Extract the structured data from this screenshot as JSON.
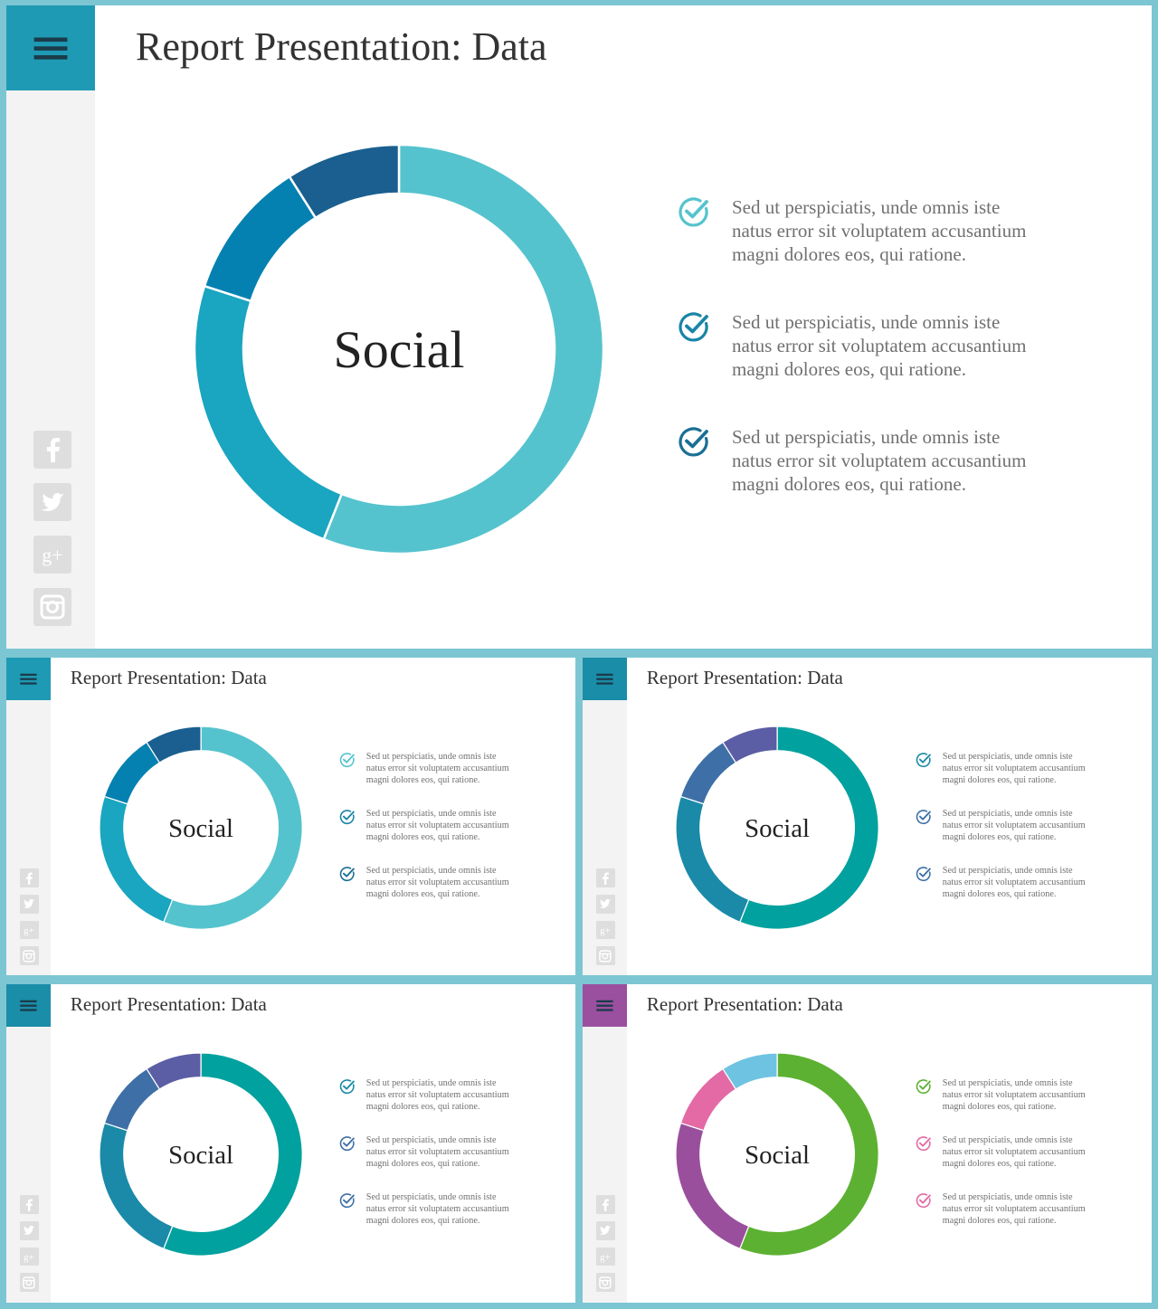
{
  "slides": [
    {
      "id": "main",
      "title": "Report Presentation: Data",
      "center_label": "Social",
      "menu_color": "#1f9ab4",
      "menu_icon": "hamburger-menu-icon",
      "chart_data": {
        "type": "pie",
        "donut": true,
        "center_text": "Social",
        "values": [
          56,
          24,
          11,
          9
        ],
        "colors": [
          "#55c3cd",
          "#1aa5c0",
          "#0481b0",
          "#1a5f8f"
        ]
      },
      "bullets": [
        {
          "icon": "check-circle-icon",
          "color": "#55c3cd",
          "lines": [
            "Sed ut perspiciatis, unde omnis iste",
            "natus error sit voluptatem accusantium",
            "magni dolores eos, qui ratione."
          ]
        },
        {
          "icon": "check-circle-icon",
          "color": "#1a85a6",
          "lines": [
            "Sed ut perspiciatis, unde omnis iste",
            "natus error sit voluptatem accusantium",
            "magni dolores eos, qui ratione."
          ]
        },
        {
          "icon": "check-circle-icon",
          "color": "#1a6f93",
          "lines": [
            "Sed ut perspiciatis, unde omnis iste",
            "natus error sit voluptatem accusantium",
            "magni dolores eos, qui ratione."
          ]
        }
      ],
      "social_icons": [
        "facebook-icon",
        "twitter-icon",
        "google-plus-icon",
        "instagram-icon"
      ]
    },
    {
      "id": "variant-1",
      "title": "Report Presentation: Data",
      "center_label": "Social",
      "menu_color": "#1f9ab4",
      "menu_icon": "hamburger-menu-icon",
      "chart_data": {
        "type": "pie",
        "donut": true,
        "center_text": "Social",
        "values": [
          56,
          24,
          11,
          9
        ],
        "colors": [
          "#55c3cd",
          "#1aa5c0",
          "#0481b0",
          "#1a5f8f"
        ]
      },
      "bullets": [
        {
          "icon": "check-circle-icon",
          "color": "#55c3cd",
          "lines": [
            "Sed ut perspiciatis, unde omnis iste",
            "natus error sit voluptatem accusantium",
            "magni dolores eos, qui ratione."
          ]
        },
        {
          "icon": "check-circle-icon",
          "color": "#1a85a6",
          "lines": [
            "Sed ut perspiciatis, unde omnis iste",
            "natus error sit voluptatem accusantium",
            "magni dolores eos, qui ratione."
          ]
        },
        {
          "icon": "check-circle-icon",
          "color": "#1a6f93",
          "lines": [
            "Sed ut perspiciatis, unde omnis iste",
            "natus error sit voluptatem accusantium",
            "magni dolores eos, qui ratione."
          ]
        }
      ],
      "social_icons": [
        "facebook-icon",
        "twitter-icon",
        "google-plus-icon",
        "instagram-icon"
      ]
    },
    {
      "id": "variant-2",
      "title": "Report Presentation: Data",
      "center_label": "Social",
      "menu_color": "#1a8da8",
      "menu_icon": "hamburger-menu-icon",
      "chart_data": {
        "type": "pie",
        "donut": true,
        "center_text": "Social",
        "values": [
          56,
          24,
          11,
          9
        ],
        "colors": [
          "#00a19e",
          "#1a8aa8",
          "#3e6fa6",
          "#5b5ea4"
        ]
      },
      "bullets": [
        {
          "icon": "check-circle-icon",
          "color": "#1a8aa8",
          "lines": [
            "Sed ut perspiciatis, unde omnis iste",
            "natus error sit voluptatem accusantium",
            "magni dolores eos, qui ratione."
          ]
        },
        {
          "icon": "check-circle-icon",
          "color": "#3e6fa6",
          "lines": [
            "Sed ut perspiciatis, unde omnis iste",
            "natus error sit voluptatem accusantium",
            "magni dolores eos, qui ratione."
          ]
        },
        {
          "icon": "check-circle-icon",
          "color": "#3e6fa6",
          "lines": [
            "Sed ut perspiciatis, unde omnis iste",
            "natus error sit voluptatem accusantium",
            "magni dolores eos, qui ratione."
          ]
        }
      ],
      "social_icons": [
        "facebook-icon",
        "twitter-icon",
        "google-plus-icon",
        "instagram-icon"
      ]
    },
    {
      "id": "variant-3",
      "title": "Report Presentation: Data",
      "center_label": "Social",
      "menu_color": "#1a8da8",
      "menu_icon": "hamburger-menu-icon",
      "chart_data": {
        "type": "pie",
        "donut": true,
        "center_text": "Social",
        "values": [
          56,
          24,
          11,
          9
        ],
        "colors": [
          "#00a19e",
          "#1a8aa8",
          "#3e6fa6",
          "#5b5ea4"
        ]
      },
      "bullets": [
        {
          "icon": "check-circle-icon",
          "color": "#1a8aa8",
          "lines": [
            "Sed ut perspiciatis, unde omnis iste",
            "natus error sit voluptatem accusantium",
            "magni dolores eos, qui ratione."
          ]
        },
        {
          "icon": "check-circle-icon",
          "color": "#3e6fa6",
          "lines": [
            "Sed ut perspiciatis, unde omnis iste",
            "natus error sit voluptatem accusantium",
            "magni dolores eos, qui ratione."
          ]
        },
        {
          "icon": "check-circle-icon",
          "color": "#3e6fa6",
          "lines": [
            "Sed ut perspiciatis, unde omnis iste",
            "natus error sit voluptatem accusantium",
            "magni dolores eos, qui ratione."
          ]
        }
      ],
      "social_icons": [
        "facebook-icon",
        "twitter-icon",
        "google-plus-icon",
        "instagram-icon"
      ]
    },
    {
      "id": "variant-4",
      "title": "Report Presentation: Data",
      "center_label": "Social",
      "menu_color": "#9b4f9f",
      "menu_icon": "hamburger-menu-icon",
      "chart_data": {
        "type": "pie",
        "donut": true,
        "center_text": "Social",
        "values": [
          56,
          24,
          11,
          9
        ],
        "colors": [
          "#5db132",
          "#9a4f9d",
          "#e36aa5",
          "#6ec3e2"
        ]
      },
      "bullets": [
        {
          "icon": "check-circle-icon",
          "color": "#5db132",
          "lines": [
            "Sed ut perspiciatis, unde omnis iste",
            "natus error sit voluptatem accusantium",
            "magni dolores eos, qui ratione."
          ]
        },
        {
          "icon": "check-circle-icon",
          "color": "#e36aa5",
          "lines": [
            "Sed ut perspiciatis, unde omnis iste",
            "natus error sit voluptatem accusantium",
            "magni dolores eos, qui ratione."
          ]
        },
        {
          "icon": "check-circle-icon",
          "color": "#e36aa5",
          "lines": [
            "Sed ut perspiciatis, unde omnis iste",
            "natus error sit voluptatem accusantium",
            "magni dolores eos, qui ratione."
          ]
        }
      ],
      "social_icons": [
        "facebook-icon",
        "twitter-icon",
        "google-plus-icon",
        "instagram-icon"
      ]
    }
  ]
}
